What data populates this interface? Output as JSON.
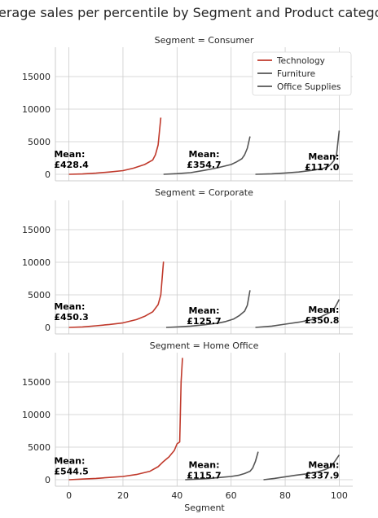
{
  "chart_data": {
    "type": "line",
    "title": "Average sales per percentile by Segment and Product category",
    "xlabel": "Segment",
    "ylabel": "",
    "xlim": [
      -5,
      105
    ],
    "ylim": [
      -1000,
      19500
    ],
    "xticks": [
      0,
      20,
      40,
      60,
      80,
      100
    ],
    "yticks": [
      0,
      5000,
      10000,
      15000
    ],
    "grid": true,
    "legend": {
      "position": "top-right",
      "entries": [
        {
          "name": "Technology",
          "color": "#c0392b"
        },
        {
          "name": "Furniture",
          "color": "#555555"
        },
        {
          "name": "Office Supplies",
          "color": "#555555"
        }
      ]
    },
    "mean_prefix": "Mean:",
    "facets": [
      {
        "title": "Segment = Consumer",
        "series": [
          {
            "name": "Technology",
            "color": "#c0392b",
            "x": [
              0,
              5,
              10,
              15,
              20,
              24,
              28,
              31,
              32,
              33,
              34
            ],
            "y": [
              0,
              50,
              180,
              350,
              560,
              950,
              1500,
              2200,
              3000,
              4500,
              8700
            ]
          },
          {
            "name": "Furniture",
            "color": "#555555",
            "x": [
              35,
              40,
              45,
              50,
              55,
              60,
              62,
              64,
              65,
              66,
              67
            ],
            "y": [
              0,
              100,
              250,
              600,
              1000,
              1500,
              1900,
              2400,
              3000,
              4000,
              5800
            ]
          },
          {
            "name": "Office Supplies",
            "color": "#555555",
            "x": [
              69,
              75,
              80,
              85,
              90,
              94,
              96,
              97,
              98,
              99,
              100
            ],
            "y": [
              0,
              80,
              200,
              350,
              600,
              900,
              1200,
              1600,
              2100,
              3000,
              6700
            ]
          }
        ],
        "means": [
          {
            "text": "£428.4",
            "x": -5.5,
            "y": 1000
          },
          {
            "text": "£354.7",
            "x": 50,
            "y": 1000
          },
          {
            "text": "£117.0",
            "x": 100,
            "y": 600
          }
        ]
      },
      {
        "title": "Segment = Corporate",
        "series": [
          {
            "name": "Technology",
            "color": "#c0392b",
            "x": [
              0,
              5,
              10,
              15,
              20,
              25,
              28,
              31,
              33,
              34,
              35
            ],
            "y": [
              0,
              80,
              250,
              450,
              700,
              1200,
              1700,
              2400,
              3500,
              5000,
              10100
            ]
          },
          {
            "name": "Furniture",
            "color": "#555555",
            "x": [
              36,
              40,
              45,
              50,
              55,
              58,
              61,
              63,
              65,
              66,
              67
            ],
            "y": [
              0,
              80,
              200,
              400,
              650,
              900,
              1300,
              1800,
              2500,
              3400,
              5700
            ]
          },
          {
            "name": "Office Supplies",
            "color": "#555555",
            "x": [
              69,
              75,
              80,
              85,
              90,
              93,
              95,
              97,
              98,
              99,
              100
            ],
            "y": [
              0,
              200,
              500,
              800,
              1200,
              1600,
              2000,
              2400,
              2800,
              3500,
              4300
            ]
          }
        ],
        "means": [
          {
            "text": "£450.3",
            "x": -5.5,
            "y": 1100
          },
          {
            "text": "£125.7",
            "x": 50,
            "y": 500
          },
          {
            "text": "£350.8",
            "x": 100,
            "y": 600
          }
        ]
      },
      {
        "title": "Segment = Home Office",
        "series": [
          {
            "name": "Technology",
            "color": "#c0392b",
            "x": [
              0,
              5,
              10,
              15,
              20,
              25,
              30,
              33,
              35,
              37,
              39,
              40,
              41,
              41.5,
              42
            ],
            "y": [
              0,
              100,
              200,
              350,
              500,
              800,
              1300,
              2000,
              2800,
              3500,
              4500,
              5500,
              5800,
              15000,
              18700
            ]
          },
          {
            "name": "Furniture",
            "color": "#555555",
            "x": [
              43,
              48,
              52,
              56,
              60,
              63,
              65,
              67,
              68,
              69,
              70
            ],
            "y": [
              0,
              100,
              200,
              350,
              500,
              700,
              950,
              1300,
              1800,
              2800,
              4300
            ]
          },
          {
            "name": "Office Supplies",
            "color": "#555555",
            "x": [
              72,
              76,
              80,
              84,
              88,
              92,
              95,
              97,
              98,
              99,
              100
            ],
            "y": [
              0,
              200,
              450,
              700,
              900,
              1200,
              1600,
              2000,
              2600,
              3200,
              3800
            ]
          }
        ],
        "means": [
          {
            "text": "£544.5",
            "x": -5.5,
            "y": 800
          },
          {
            "text": "£115.7",
            "x": 50,
            "y": 200
          },
          {
            "text": "£337.9",
            "x": 100,
            "y": 200
          }
        ]
      }
    ]
  }
}
